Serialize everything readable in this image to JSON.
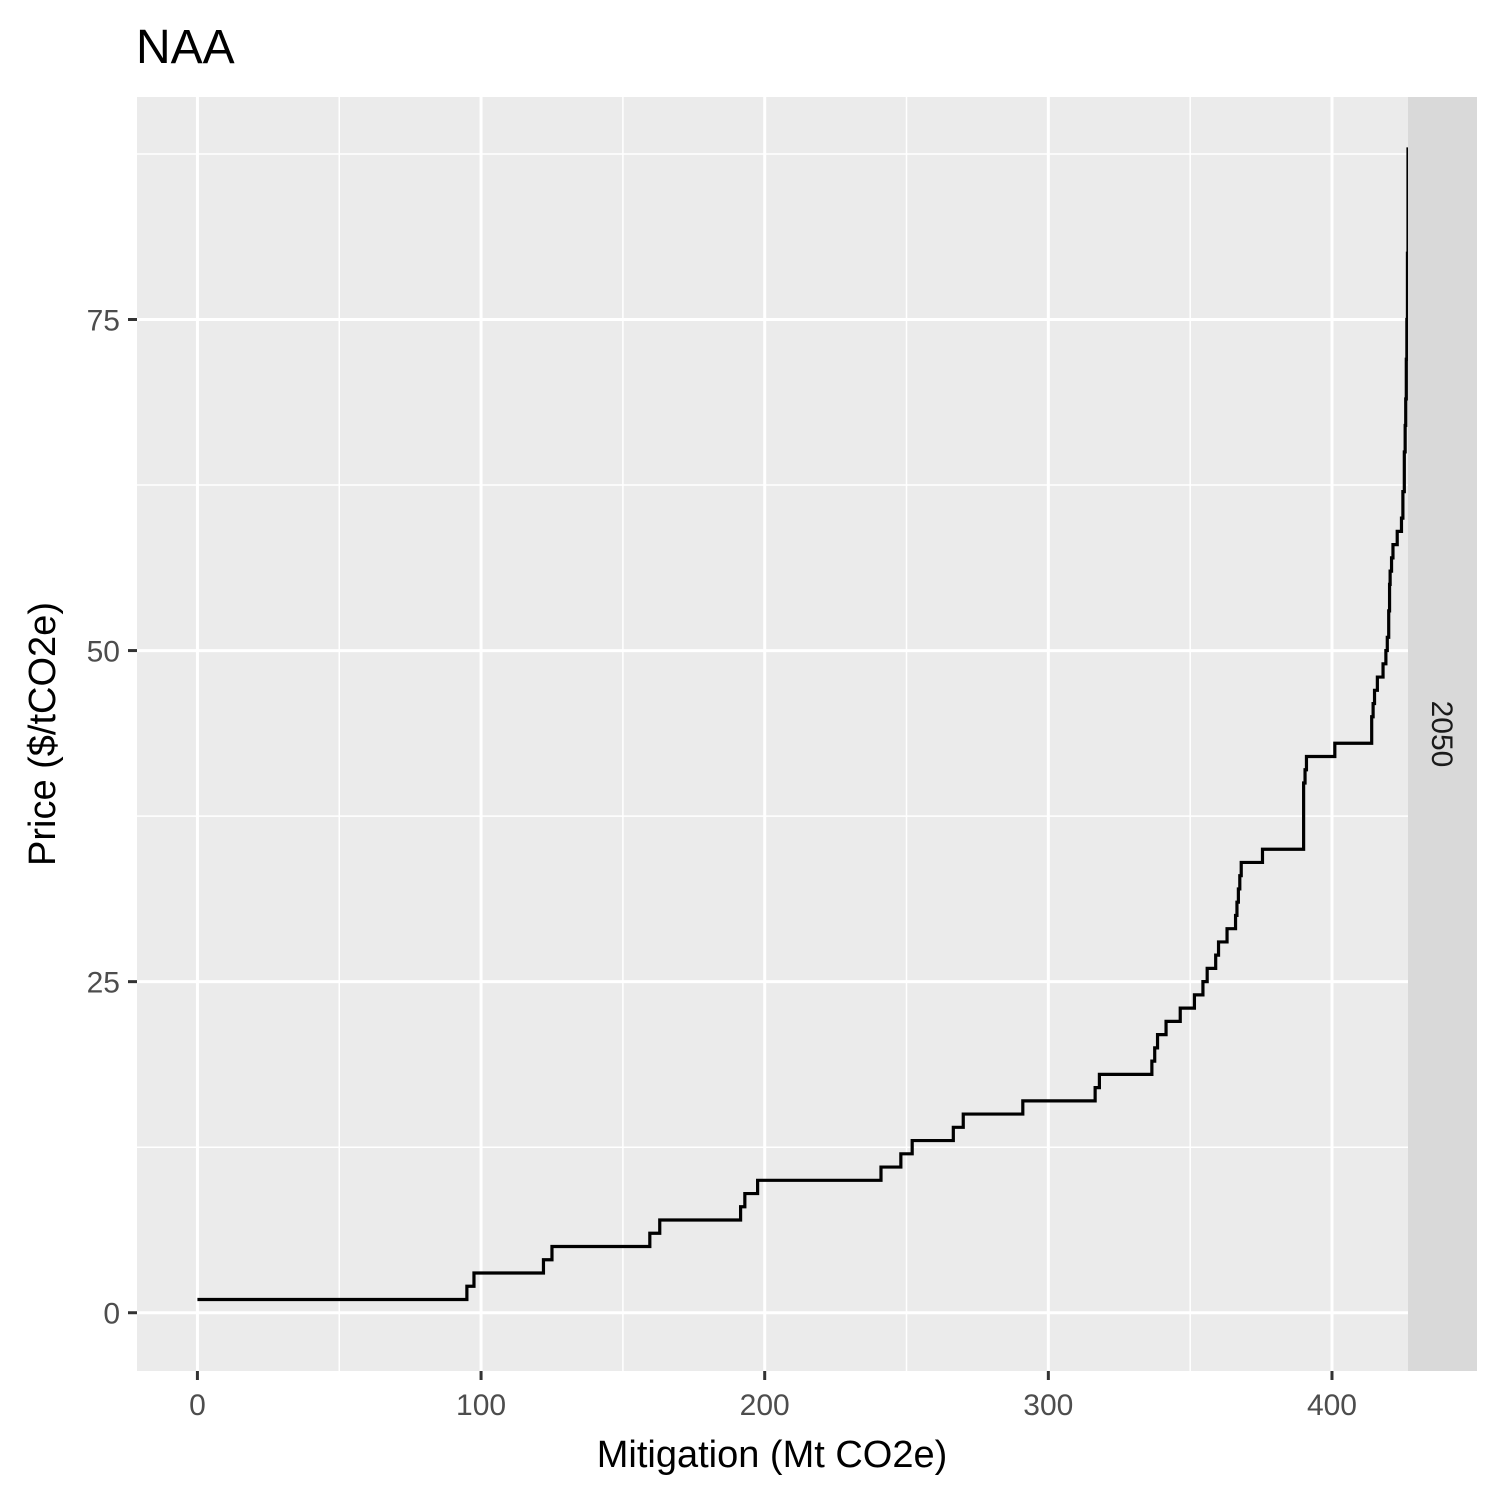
{
  "chart_data": {
    "type": "line",
    "title": "NAA",
    "xlabel": "Mitigation (Mt CO2e)",
    "ylabel": "Price ($/tCO2e)",
    "facet_label": "2050",
    "xlim": [
      -21.3,
      426.8
    ],
    "ylim": [
      -4.4,
      91.8
    ],
    "x_ticks": [
      0,
      100,
      200,
      300,
      400
    ],
    "x_tick_labels": [
      "0",
      "100",
      "200",
      "300",
      "400"
    ],
    "x_minor": [
      50,
      150,
      250,
      350
    ],
    "y_ticks": [
      0,
      25,
      50,
      75
    ],
    "y_tick_labels": [
      "0",
      "25",
      "50",
      "75"
    ],
    "y_minor": [
      12.5,
      37.5,
      62.5,
      87.5
    ],
    "grid": true,
    "colors": {
      "panel_background": "#ebebeb",
      "grid": "#ffffff",
      "strip_background": "#d9d9d9",
      "line": "#000000"
    },
    "series": [
      {
        "step": "hv",
        "points": [
          [
            0,
            1
          ],
          [
            95,
            2
          ],
          [
            97.5,
            3
          ],
          [
            122,
            4
          ],
          [
            125,
            5
          ],
          [
            159.5,
            6
          ],
          [
            163,
            7
          ],
          [
            191.5,
            8
          ],
          [
            193,
            9
          ],
          [
            197.5,
            10
          ],
          [
            241,
            11
          ],
          [
            248,
            12
          ],
          [
            252,
            13
          ],
          [
            266.5,
            14
          ],
          [
            270,
            15
          ],
          [
            291,
            16
          ],
          [
            316.5,
            17
          ],
          [
            318,
            18
          ],
          [
            336.5,
            19
          ],
          [
            337.5,
            20
          ],
          [
            338.5,
            21
          ],
          [
            341.5,
            22
          ],
          [
            346.5,
            23
          ],
          [
            351.5,
            24
          ],
          [
            354.5,
            25
          ],
          [
            356,
            26
          ],
          [
            359,
            27
          ],
          [
            360,
            28
          ],
          [
            363,
            29
          ],
          [
            366,
            30
          ],
          [
            366.5,
            31
          ],
          [
            367,
            32
          ],
          [
            367.5,
            33
          ],
          [
            368,
            34
          ],
          [
            375.5,
            35
          ],
          [
            390,
            40
          ],
          [
            390.5,
            41
          ],
          [
            391,
            42
          ],
          [
            401,
            43
          ],
          [
            414,
            45
          ],
          [
            414.5,
            46
          ],
          [
            415,
            47
          ],
          [
            416,
            48
          ],
          [
            418,
            49
          ],
          [
            419,
            50
          ],
          [
            419.5,
            51
          ],
          [
            420,
            53
          ],
          [
            420.3,
            55
          ],
          [
            420.5,
            56
          ],
          [
            421,
            57
          ],
          [
            421.5,
            58
          ],
          [
            423,
            59
          ],
          [
            424.5,
            60
          ],
          [
            425,
            62
          ],
          [
            425.5,
            65
          ],
          [
            425.8,
            67
          ],
          [
            426,
            69
          ],
          [
            426.2,
            72
          ],
          [
            426.4,
            75
          ],
          [
            426.6,
            80
          ],
          [
            426.8,
            88
          ]
        ]
      }
    ]
  }
}
